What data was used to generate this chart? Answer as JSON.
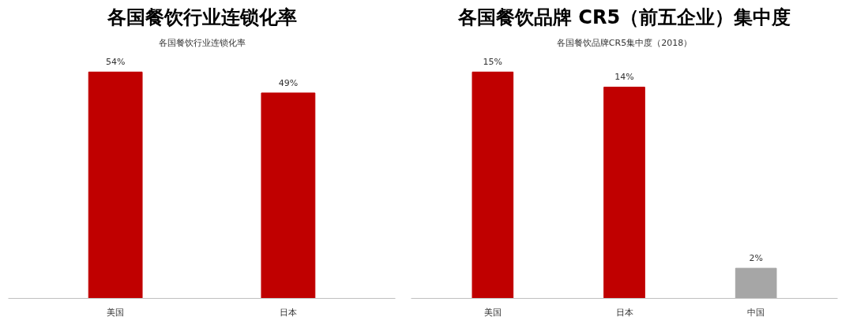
{
  "chart_data": [
    {
      "type": "bar",
      "title": "各国餐饮行业连锁化率",
      "subtitle": "各国餐饮行业连锁化率",
      "categories": [
        "美国",
        "日本"
      ],
      "values": [
        54,
        49
      ],
      "value_labels": [
        "54%",
        "49%"
      ],
      "colors": [
        "#c00000",
        "#c00000"
      ],
      "tick_labels": "x",
      "grid": false,
      "legend": false
    },
    {
      "type": "bar",
      "title": "各国餐饮品牌 CR5（前五企业）集中度",
      "subtitle": "各国餐饮品牌CR5集中度（2018）",
      "categories": [
        "美国",
        "日本",
        "中国"
      ],
      "values": [
        15,
        14,
        2
      ],
      "value_labels": [
        "15%",
        "14%",
        "2%"
      ],
      "colors": [
        "#c00000",
        "#c00000",
        "#a6a6a6"
      ],
      "tick_labels": "x",
      "grid": false,
      "legend": false
    }
  ]
}
